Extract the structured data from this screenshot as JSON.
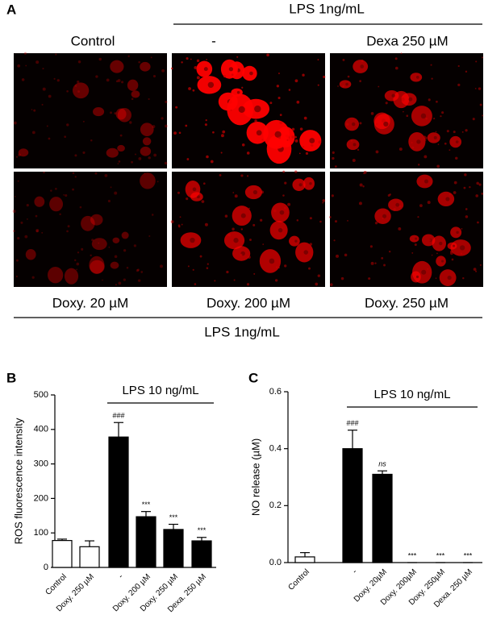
{
  "panel_a": {
    "label": "A",
    "top_group": "LPS 1ng/mL",
    "top_labels": [
      "Control",
      "-",
      "Dexa 250 µM"
    ],
    "bottom_labels": [
      "Doxy. 20 µM",
      "Doxy. 200 µM",
      "Doxy. 250 µM"
    ],
    "bottom_group": "LPS 1ng/mL"
  },
  "chart_data": [
    {
      "type": "bar",
      "panel_label": "B",
      "ylabel": "ROS fluorescence intensity",
      "group_label": "LPS 10 ng/mL",
      "categories": [
        "Control",
        "Doxy. 250 µM",
        "-",
        "Doxy. 200 µM",
        "Doxy. 250 µM",
        "Dexa. 250 µM"
      ],
      "values": [
        78,
        60,
        378,
        147,
        110,
        77
      ],
      "errors": [
        4,
        17,
        42,
        15,
        15,
        10
      ],
      "colors": [
        "#ffffff",
        "#ffffff",
        "#000000",
        "#000000",
        "#000000",
        "#000000"
      ],
      "annotations": [
        null,
        null,
        "###",
        "***",
        "***",
        "***"
      ],
      "ylim": [
        0,
        500
      ],
      "yticks": [
        0,
        100,
        200,
        300,
        400,
        500
      ]
    },
    {
      "type": "bar",
      "panel_label": "C",
      "ylabel": "NO release (µM)",
      "group_label": "LPS 10 ng/mL",
      "categories": [
        "Control",
        "-",
        "Doxy. 20µM",
        "Doxy. 200µM",
        "Doxy. 250µM",
        "Dexa. 250 µM"
      ],
      "values": [
        0.02,
        0.4,
        0.31,
        0,
        0,
        0
      ],
      "errors": [
        0.015,
        0.065,
        0.012,
        0,
        0,
        0
      ],
      "colors": [
        "#ffffff",
        "#000000",
        "#000000",
        "#000000",
        "#000000",
        "#000000"
      ],
      "annotations": [
        null,
        "###",
        "ns",
        "***",
        "***",
        "***"
      ],
      "ylim": [
        0,
        0.6
      ],
      "yticks": [
        {
          "value": 0,
          "label": "0.0"
        },
        0.2,
        0.4,
        0.6
      ]
    }
  ]
}
